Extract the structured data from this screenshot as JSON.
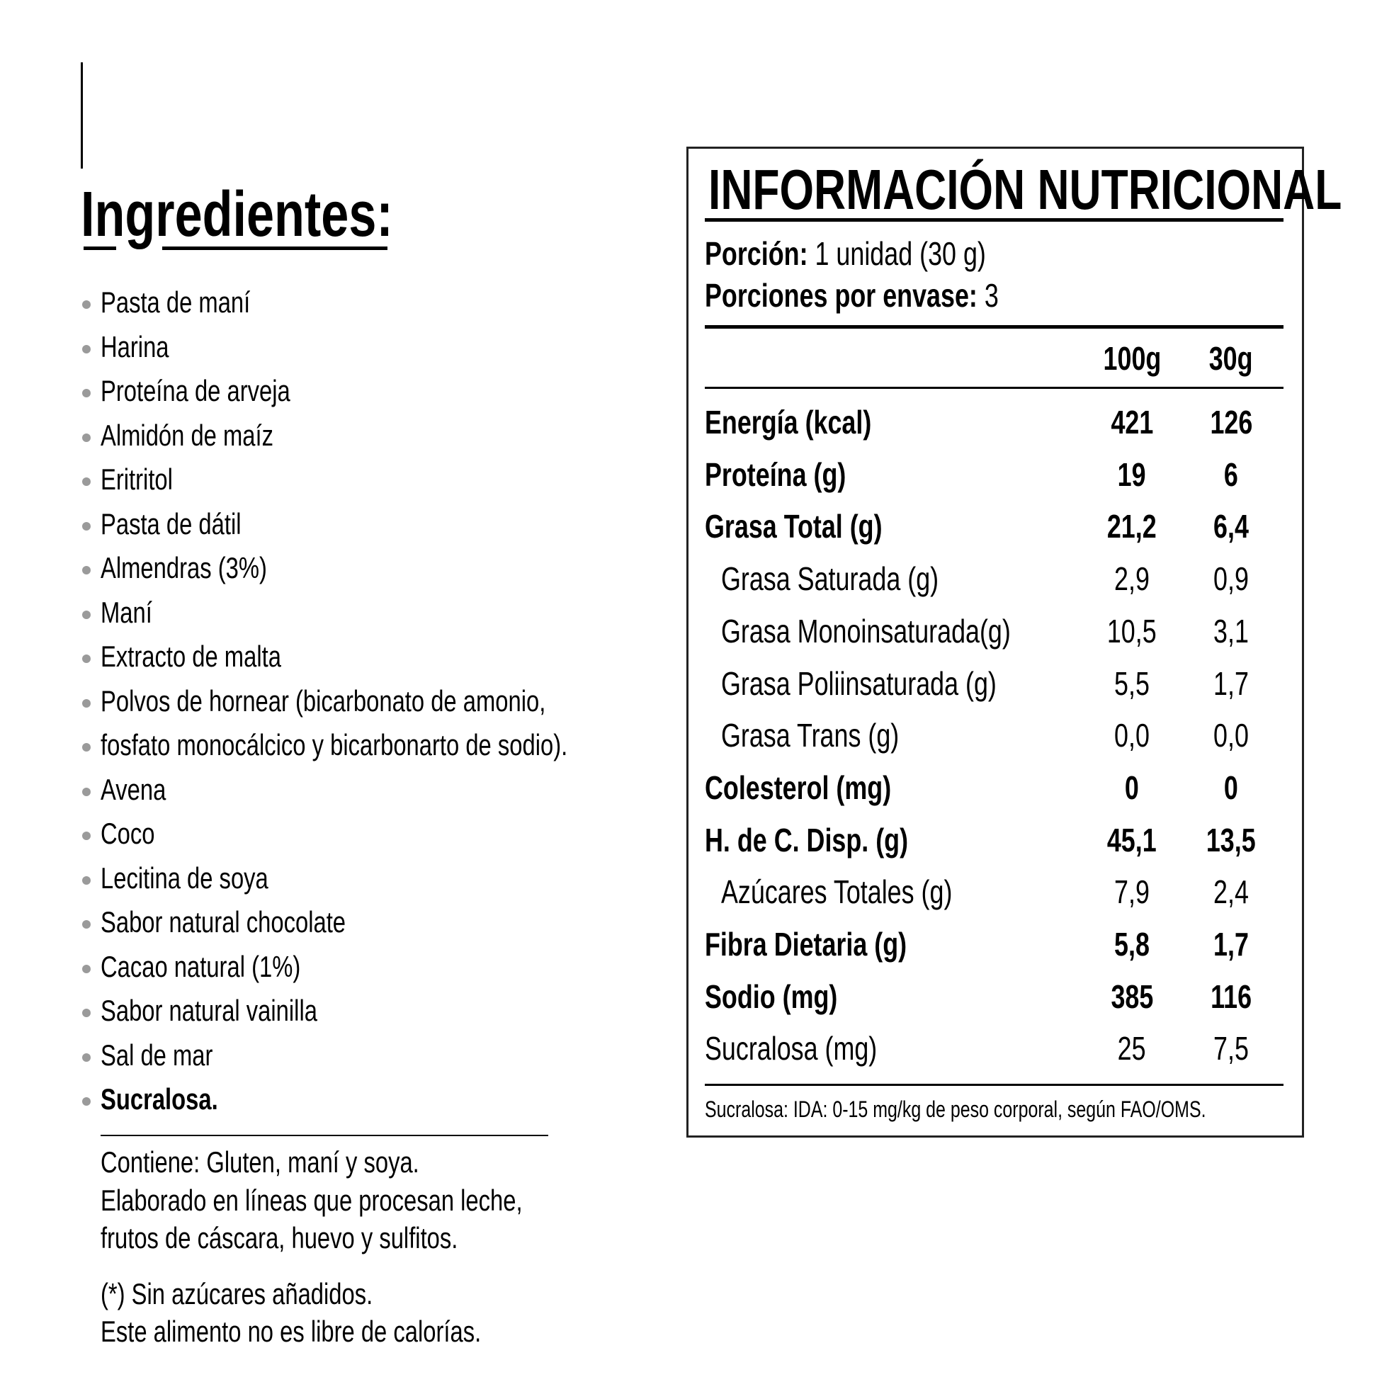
{
  "ingredients": {
    "title": "Ingredientes:",
    "items": [
      "Pasta de maní",
      "Harina",
      "Proteína de arveja",
      "Almidón de maíz",
      "Eritritol",
      "Pasta de dátil",
      "Almendras (3%)",
      "Maní",
      "Extracto de malta",
      "Polvos de hornear (bicarbonato de amonio,",
      "fosfato monocálcico y bicarbonarto de sodio).",
      "Avena",
      "Coco",
      "Lecitina de soya",
      "Sabor natural chocolate",
      "Cacao natural (1%)",
      "Sabor natural vainilla",
      "Sal de mar",
      "Sucralosa."
    ],
    "allergens": [
      "Contiene: Gluten, maní y soya.",
      "Elaborado en líneas que procesan leche,",
      "frutos de cáscara, huevo y sulfitos."
    ],
    "notes": [
      "(*) Sin azúcares añadidos.",
      "Este alimento no es libre de calorías."
    ]
  },
  "nutrition": {
    "title": "INFORMACIÓN NUTRICIONAL",
    "portion_label": "Porción:",
    "portion_value": "1 unidad (30 g)",
    "servings_label": "Porciones por envase:",
    "servings_value": "3",
    "columns": [
      "100g",
      "30g"
    ],
    "rows": [
      {
        "label": "Energía (kcal)",
        "v100": "421",
        "v30": "126",
        "bold": true
      },
      {
        "label": "Proteína (g)",
        "v100": "19",
        "v30": "6",
        "bold": true
      },
      {
        "label": "Grasa Total (g)",
        "v100": "21,2",
        "v30": "6,4",
        "bold": true
      },
      {
        "label": "Grasa Saturada (g)",
        "v100": "2,9",
        "v30": "0,9",
        "indent": true
      },
      {
        "label": "Grasa Monoinsaturada(g)",
        "v100": "10,5",
        "v30": "3,1",
        "indent": true
      },
      {
        "label": "Grasa Poliinsaturada (g)",
        "v100": "5,5",
        "v30": "1,7",
        "indent": true
      },
      {
        "label": "Grasa Trans (g)",
        "v100": "0,0",
        "v30": "0,0",
        "indent": true
      },
      {
        "label": "Colesterol (mg)",
        "v100": "0",
        "v30": "0",
        "bold": true
      },
      {
        "label": "H. de C. Disp. (g)",
        "v100": "45,1",
        "v30": "13,5",
        "bold": true
      },
      {
        "label": "Azúcares Totales (g)",
        "v100": "7,9",
        "v30": "2,4",
        "indent": true
      },
      {
        "label": "Fibra Dietaria (g)",
        "v100": "5,8",
        "v30": "1,7",
        "bold": true
      },
      {
        "label": "Sodio (mg)",
        "v100": "385",
        "v30": "116",
        "bold": true
      },
      {
        "label": "Sucralosa (mg)",
        "v100": "25",
        "v30": "7,5"
      }
    ],
    "footnote": "Sucralosa: IDA: 0-15 mg/kg de peso corporal, según FAO/OMS."
  }
}
